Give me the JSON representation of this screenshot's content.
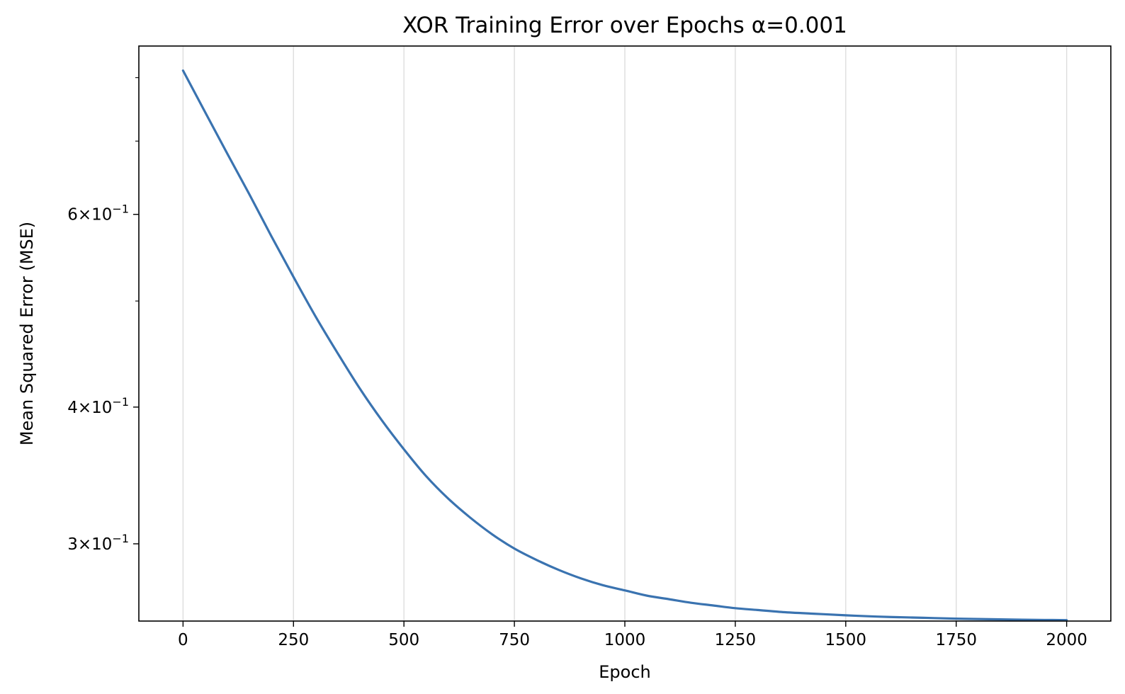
{
  "chart_data": {
    "type": "line",
    "title": "XOR Training Error over Epochs α=0.001",
    "xlabel": "Epoch",
    "ylabel": "Mean Squared Error (MSE)",
    "xlim": [
      -100,
      2100
    ],
    "ylim": [
      0.255,
      0.855
    ],
    "yscale": "log",
    "grid": "x-major only",
    "legend": "none",
    "line_color": "#3a73b0",
    "x_ticks": [
      {
        "value": 0,
        "label": "0"
      },
      {
        "value": 250,
        "label": "250"
      },
      {
        "value": 500,
        "label": "500"
      },
      {
        "value": 750,
        "label": "750"
      },
      {
        "value": 1000,
        "label": "1000"
      },
      {
        "value": 1250,
        "label": "1250"
      },
      {
        "value": 1500,
        "label": "1500"
      },
      {
        "value": 1750,
        "label": "1750"
      },
      {
        "value": 2000,
        "label": "2000"
      }
    ],
    "y_ticks": [
      {
        "value": 0.6,
        "mant": "6",
        "base": "×10",
        "exp": "−1"
      },
      {
        "value": 0.4,
        "mant": "4",
        "base": "×10",
        "exp": "−1"
      },
      {
        "value": 0.3,
        "mant": "3",
        "base": "×10",
        "exp": "−1"
      }
    ],
    "y_minor_ticks": [
      0.5,
      0.7,
      0.8
    ],
    "series": [
      {
        "x": [
          0,
          50,
          100,
          150,
          200,
          250,
          300,
          350,
          400,
          450,
          500,
          550,
          600,
          650,
          700,
          750,
          800,
          850,
          900,
          950,
          1000,
          1050,
          1100,
          1150,
          1200,
          1250,
          1300,
          1350,
          1400,
          1450,
          1500,
          1550,
          1600,
          1650,
          1700,
          1750,
          1800,
          1850,
          1900,
          1950,
          2000
        ],
        "y": [
          0.812,
          0.744,
          0.682,
          0.626,
          0.573,
          0.526,
          0.484,
          0.448,
          0.416,
          0.389,
          0.366,
          0.346,
          0.33,
          0.317,
          0.306,
          0.297,
          0.29,
          0.284,
          0.279,
          0.275,
          0.272,
          0.269,
          0.267,
          0.265,
          0.2635,
          0.262,
          0.261,
          0.26,
          0.2593,
          0.2587,
          0.2581,
          0.2576,
          0.2572,
          0.2569,
          0.2566,
          0.2563,
          0.2561,
          0.2559,
          0.2557,
          0.2556,
          0.2555
        ]
      }
    ]
  }
}
